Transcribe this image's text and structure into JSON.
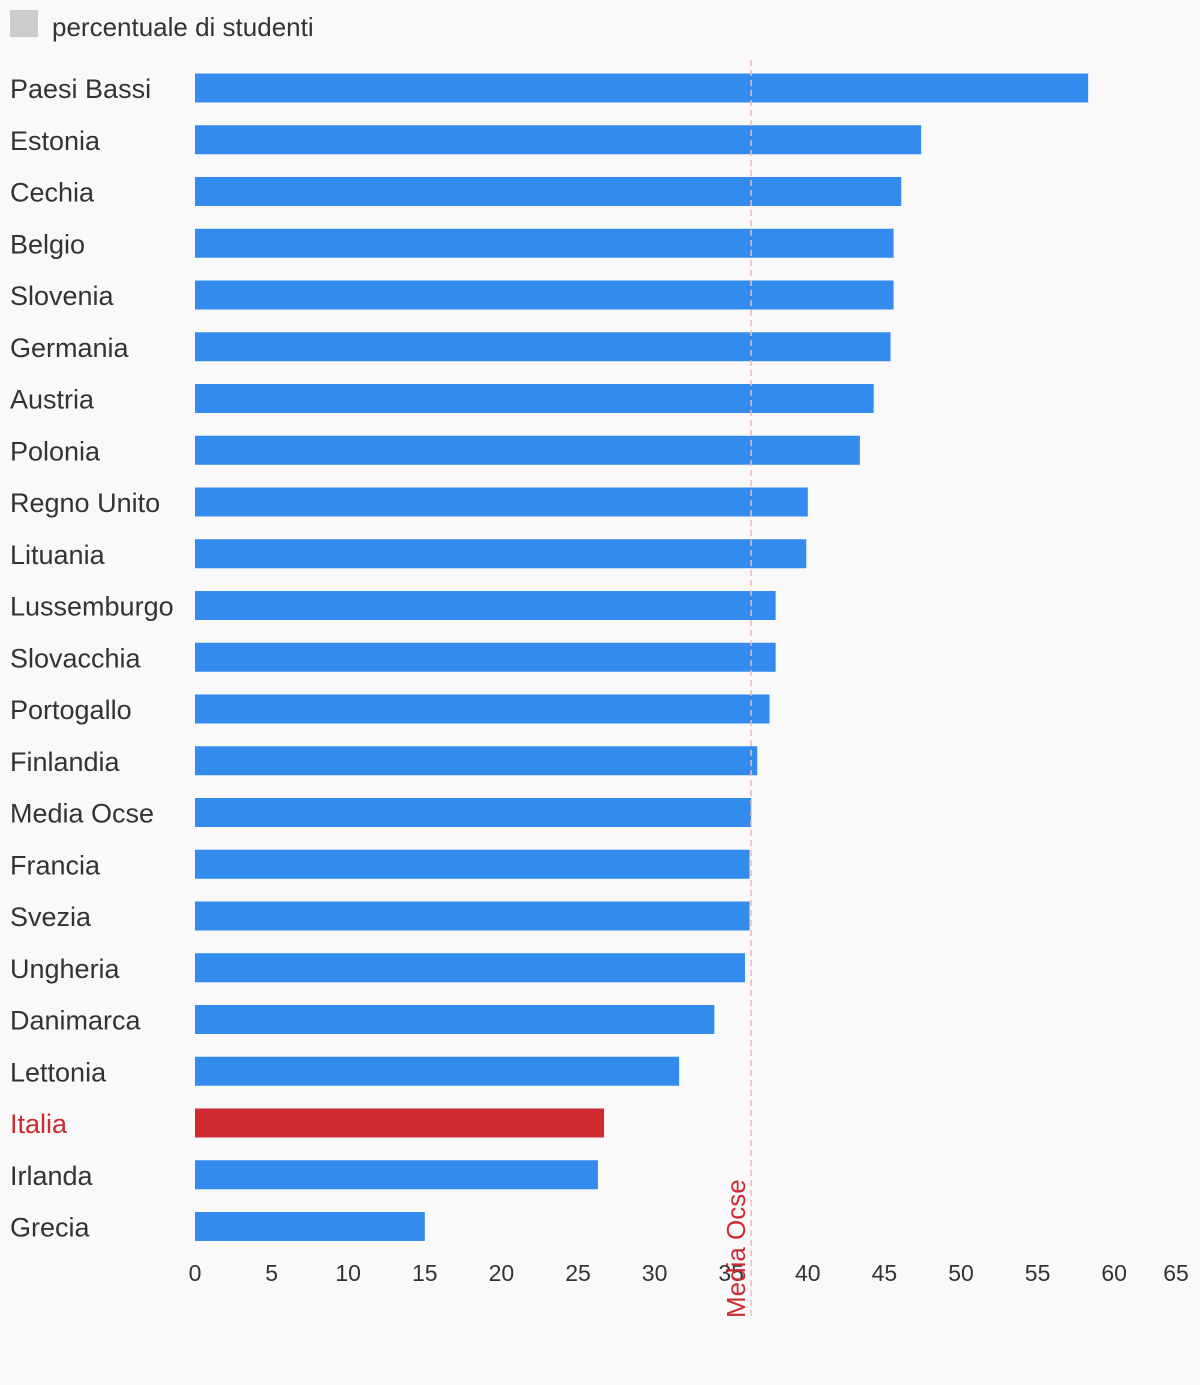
{
  "chart_data": {
    "type": "bar",
    "orientation": "horizontal",
    "title": "",
    "xlabel": "",
    "ylabel": "",
    "legend": {
      "position": "top-left",
      "entries": [
        "percentuale di studenti"
      ]
    },
    "categories": [
      "Paesi Bassi",
      "Estonia",
      "Cechia",
      "Belgio",
      "Slovenia",
      "Germania",
      "Austria",
      "Polonia",
      "Regno Unito",
      "Lituania",
      "Lussemburgo",
      "Slovacchia",
      "Portogallo",
      "Finlandia",
      "Media Ocse",
      "Francia",
      "Svezia",
      "Ungheria",
      "Danimarca",
      "Lettonia",
      "Italia",
      "Irlanda",
      "Grecia"
    ],
    "series": [
      {
        "name": "percentuale di studenti",
        "values": [
          58.3,
          47.4,
          46.1,
          45.6,
          45.6,
          45.4,
          44.3,
          43.4,
          40.0,
          39.9,
          37.9,
          37.9,
          37.5,
          36.7,
          36.3,
          36.2,
          36.2,
          35.9,
          33.9,
          31.6,
          26.7,
          26.3,
          15.0
        ]
      }
    ],
    "highlight_category": "Italia",
    "xlim": [
      0,
      65
    ],
    "x_ticks": [
      "0",
      "5",
      "10",
      "15",
      "20",
      "25",
      "30",
      "35",
      "40",
      "45",
      "50",
      "55",
      "60",
      "65"
    ],
    "reference_line": {
      "label": "Media Ocse",
      "value": 36.3
    },
    "grid": false
  },
  "colors": {
    "bar": "#338bed",
    "highlight": "#cd2a31",
    "reference_line": "#f4b6b9",
    "reference_label": "#cd2a31",
    "legend_swatch": "#cccccc",
    "text": "#333333",
    "background": "#f9f9f9"
  }
}
